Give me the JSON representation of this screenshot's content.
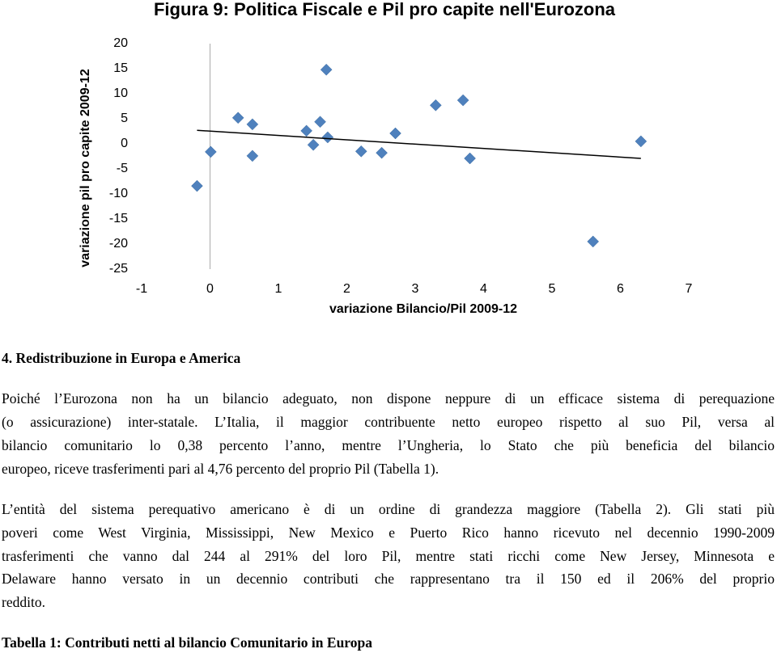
{
  "chart_data": {
    "type": "scatter",
    "title": "Figura 9: Politica Fiscale e Pil pro capite nell'Eurozona",
    "x_label": "variazione Bilancio/Pil 2009-12",
    "y_label": "variazione pil pro capite 2009-12",
    "color": "#4f81bd",
    "x": [
      -0.19,
      0.01,
      0.41,
      0.62,
      0.62,
      1.41,
      1.51,
      1.61,
      1.7,
      1.72,
      2.21,
      2.51,
      2.71,
      3.3,
      3.7,
      3.8,
      5.6,
      6.3
    ],
    "values": [
      -8.4,
      -1.6,
      5.2,
      3.9,
      -2.4,
      2.6,
      -0.2,
      4.4,
      14.8,
      1.3,
      -1.5,
      -1.8,
      2.1,
      7.7,
      8.7,
      -2.9,
      -19.5,
      0.5
    ],
    "trendline": {
      "x": [
        -0.19,
        6.3
      ],
      "y": [
        2.7,
        -2.9
      ]
    },
    "xlim": [
      -1,
      7
    ],
    "xticks": [
      -1,
      0,
      1,
      2,
      3,
      4,
      5,
      6,
      7
    ],
    "ylim": [
      -25,
      20
    ],
    "yticks": [
      20,
      15,
      10,
      5,
      0,
      -5,
      -10,
      -15,
      -20,
      -25
    ]
  },
  "document": {
    "heading": "4. Redistribuzione in Europa e America",
    "paragraphs": [
      [
        "Poiché l’Eurozona non ha un bilancio adeguato, non dispone neppure di un efficace sistema di perequazione",
        "(o assicurazione) inter-statale. L’Italia, il maggior contribuente netto europeo rispetto al suo Pil, versa al",
        "bilancio comunitario lo 0,38 percento l’anno, mentre l’Ungheria, lo Stato che più beneficia del bilancio",
        "europeo, riceve trasferimenti pari al 4,76 percento del proprio Pil (Tabella 1)."
      ],
      [
        "L’entità del sistema perequativo americano è di un ordine di grandezza maggiore (Tabella 2). Gli stati più",
        "poveri come West Virginia, Mississippi, New Mexico e Puerto Rico hanno ricevuto nel decennio 1990-2009",
        "trasferimenti che vanno dal 244 al 291% del loro Pil, mentre stati ricchi come New Jersey, Minnesota e",
        "Delaware hanno versato in un decennio contributi che rappresentano tra il 150 ed il 206% del proprio",
        "reddito."
      ]
    ],
    "table_title": "Tabella 1: Contributi netti al bilancio Comunitario in Europa"
  }
}
